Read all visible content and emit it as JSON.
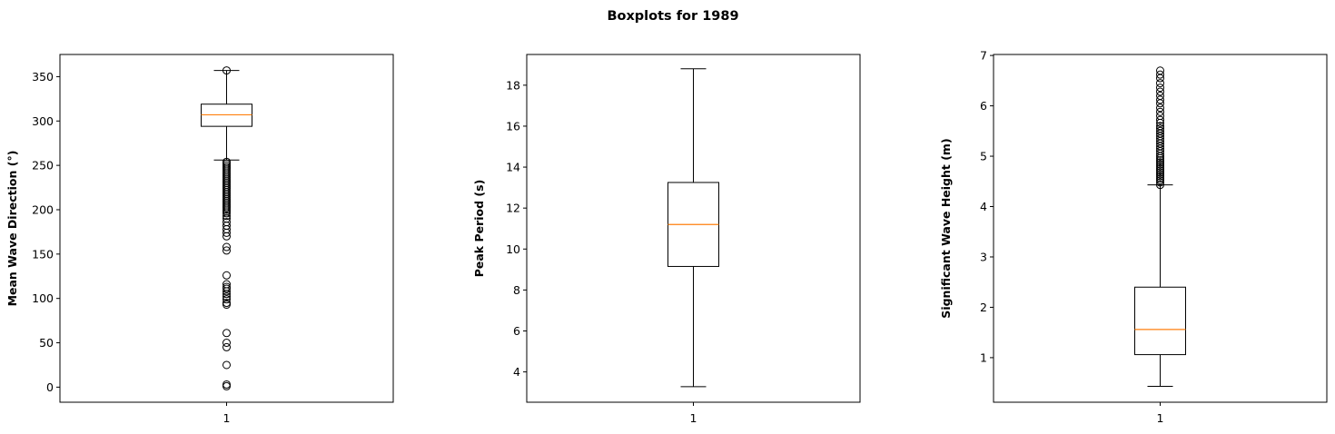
{
  "figure": {
    "title": "Boxplots for 1989"
  },
  "chart_data": [
    {
      "type": "boxplot",
      "categories": [
        "1"
      ],
      "ylabel": "Mean Wave Direction (°)",
      "xlabel": "",
      "ylim": [
        -17,
        375
      ],
      "yticks": [
        0,
        50,
        100,
        150,
        200,
        250,
        300,
        350
      ],
      "grid": false,
      "box": {
        "whislo": 256,
        "q1": 294,
        "median": 307,
        "q3": 319,
        "whishi": 357
      },
      "fliers": [
        357,
        254,
        252,
        250,
        248,
        246,
        244,
        242,
        240,
        238,
        236,
        234,
        232,
        230,
        228,
        226,
        224,
        222,
        220,
        218,
        216,
        214,
        212,
        210,
        208,
        206,
        204,
        202,
        200,
        198,
        196,
        193,
        190,
        186,
        182,
        178,
        174,
        170,
        158,
        154,
        126,
        116,
        113,
        111,
        108,
        105,
        102,
        99,
        95,
        93,
        61,
        50,
        45,
        25,
        3,
        1
      ]
    },
    {
      "type": "boxplot",
      "categories": [
        "1"
      ],
      "ylabel": "Peak Period (s)",
      "xlabel": "",
      "ylim": [
        2.52,
        19.5
      ],
      "yticks": [
        4,
        6,
        8,
        10,
        12,
        14,
        16,
        18
      ],
      "grid": false,
      "box": {
        "whislo": 3.28,
        "q1": 9.15,
        "median": 11.2,
        "q3": 13.25,
        "whishi": 18.8
      },
      "fliers": []
    },
    {
      "type": "boxplot",
      "categories": [
        "1"
      ],
      "ylabel": "Significant Wave Height (m)",
      "xlabel": "",
      "ylim": [
        0.115,
        7.02
      ],
      "yticks": [
        1,
        2,
        3,
        4,
        5,
        6,
        7
      ],
      "grid": false,
      "box": {
        "whislo": 0.43,
        "q1": 1.06,
        "median": 1.56,
        "q3": 2.4,
        "whishi": 4.43
      },
      "fliers": [
        4.43,
        4.48,
        4.52,
        4.56,
        4.6,
        4.64,
        4.68,
        4.72,
        4.76,
        4.8,
        4.84,
        4.88,
        4.92,
        4.96,
        5.0,
        5.05,
        5.1,
        5.15,
        5.2,
        5.25,
        5.3,
        5.35,
        5.4,
        5.45,
        5.5,
        5.55,
        5.6,
        5.66,
        5.72,
        5.8,
        5.88,
        5.96,
        6.05,
        6.12,
        6.2,
        6.28,
        6.36,
        6.45,
        6.55,
        6.62,
        6.7
      ]
    }
  ],
  "colors": {
    "box": "#000000",
    "median": "#ff7f0e",
    "flier_edge": "#000000",
    "background": "#ffffff"
  }
}
